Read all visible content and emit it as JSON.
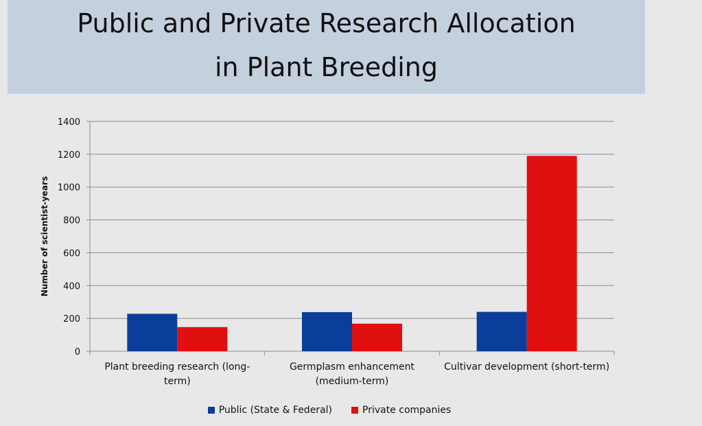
{
  "title": {
    "line1": "Public and Private Research Allocation",
    "line2": "in Plant Breeding"
  },
  "chart_data": {
    "type": "bar",
    "categories": [
      [
        "Plant breeding research (long-",
        "term)"
      ],
      [
        "Germplasm enhancement",
        "(medium-term)"
      ],
      [
        "Cultivar development (short-term)"
      ]
    ],
    "series": [
      {
        "name": "Public (State & Federal)",
        "color": "#0b3d9a",
        "values": [
          228,
          238,
          240
        ]
      },
      {
        "name": "Private companies",
        "color": "#e01010",
        "values": [
          147,
          168,
          1190
        ]
      }
    ],
    "ylabel": "Number of scientist-years",
    "ylim": [
      0,
      1400
    ],
    "yticks": [
      0,
      200,
      400,
      600,
      800,
      1000,
      1200,
      1400
    ],
    "grid": true,
    "legend_position": "bottom"
  }
}
